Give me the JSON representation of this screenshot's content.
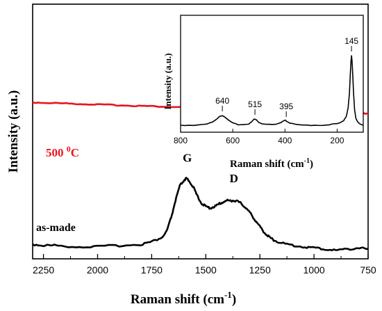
{
  "chart_data": [
    {
      "type": "line",
      "xlabel": "Raman shift (cm",
      "xlabel_sup": "-1",
      "xlabel_close": ")",
      "ylabel": "Intensity (a.u.)",
      "xlim": [
        2300,
        750
      ],
      "x_reversed": true,
      "y_ticks_shown": false,
      "grid": false,
      "xticks": [
        2250,
        2000,
        1750,
        1500,
        1250,
        1000,
        750
      ],
      "xtick_labels": [
        "2250",
        "2000",
        "1750",
        "1500",
        "1250",
        "1000",
        "750"
      ],
      "series": [
        {
          "name": "as-made",
          "label_text": "as-made",
          "color": "#000000",
          "x": [
            2300,
            2250,
            2200,
            2100,
            2000,
            1900,
            1800,
            1750,
            1700,
            1680,
            1660,
            1640,
            1620,
            1600,
            1590,
            1580,
            1560,
            1540,
            1520,
            1500,
            1480,
            1460,
            1440,
            1420,
            1400,
            1380,
            1360,
            1340,
            1320,
            1300,
            1280,
            1260,
            1240,
            1220,
            1200,
            1180,
            1150,
            1100,
            1050,
            1000,
            950,
            900,
            850,
            800,
            750
          ],
          "y": [
            0.02,
            0.01,
            0.01,
            0.0,
            0.0,
            0.01,
            0.02,
            0.04,
            0.08,
            0.13,
            0.24,
            0.38,
            0.5,
            0.55,
            0.56,
            0.55,
            0.5,
            0.42,
            0.36,
            0.33,
            0.32,
            0.33,
            0.35,
            0.37,
            0.38,
            0.38,
            0.38,
            0.36,
            0.33,
            0.29,
            0.24,
            0.19,
            0.14,
            0.1,
            0.07,
            0.05,
            0.03,
            0.01,
            0.0,
            -0.01,
            -0.02,
            -0.03,
            -0.02,
            -0.01,
            -0.02
          ]
        },
        {
          "name": "500 °C",
          "label_text": "500 ",
          "label_sup": "0",
          "label_unit": "C",
          "color": "#e8141c",
          "x": [
            2300,
            750
          ],
          "y": [
            1.19,
            1.1
          ]
        }
      ],
      "annotations": [
        {
          "text": "G",
          "x": 1585,
          "y": 0.7
        },
        {
          "text": "D",
          "x": 1370,
          "y": 0.53
        }
      ],
      "ylim": [
        -0.1,
        2.0
      ]
    },
    {
      "type": "line",
      "inset": true,
      "xlabel": "Raman shift (cm",
      "xlabel_sup": "-1",
      "xlabel_close": ")",
      "ylabel": "Intensity (a.u.)",
      "xlim": [
        800,
        100
      ],
      "x_reversed": true,
      "xticks": [
        800,
        600,
        400,
        200
      ],
      "xtick_labels": [
        "800",
        "600",
        "400",
        "200"
      ],
      "series": [
        {
          "color": "#000000",
          "x": [
            800,
            750,
            700,
            680,
            660,
            650,
            640,
            630,
            620,
            600,
            580,
            560,
            540,
            530,
            520,
            515,
            510,
            500,
            490,
            470,
            450,
            430,
            415,
            405,
            400,
            395,
            390,
            380,
            360,
            330,
            300,
            260,
            230,
            200,
            185,
            175,
            165,
            158,
            153,
            150,
            147,
            145,
            143,
            140,
            137,
            133,
            128,
            120,
            110,
            100
          ],
          "y": [
            0.0,
            0.0,
            0.02,
            0.04,
            0.09,
            0.13,
            0.14,
            0.12,
            0.08,
            0.03,
            0.01,
            0.01,
            0.02,
            0.04,
            0.08,
            0.09,
            0.08,
            0.04,
            0.02,
            0.01,
            0.01,
            0.02,
            0.04,
            0.06,
            0.07,
            0.06,
            0.05,
            0.03,
            0.01,
            0.0,
            0.0,
            0.0,
            0.01,
            0.02,
            0.04,
            0.07,
            0.13,
            0.25,
            0.45,
            0.7,
            0.92,
            1.0,
            0.93,
            0.7,
            0.45,
            0.22,
            0.1,
            0.04,
            0.01,
            0.0
          ]
        }
      ],
      "peak_labels": [
        {
          "text": "640",
          "x": 640
        },
        {
          "text": "515",
          "x": 515
        },
        {
          "text": "395",
          "x": 395
        },
        {
          "text": "145",
          "x": 145
        }
      ],
      "ylim": [
        -0.1,
        1.3
      ]
    }
  ]
}
